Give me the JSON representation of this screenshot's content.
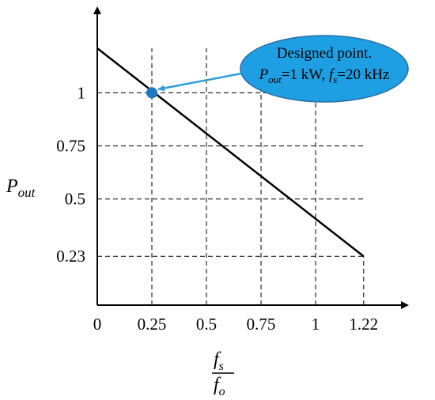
{
  "chart_data": {
    "type": "line",
    "series": [
      {
        "x": [
          0,
          1.22
        ],
        "values": [
          1.21,
          0.23
        ],
        "color": "#000000"
      }
    ],
    "marker": {
      "x": 0.25,
      "y": 1,
      "color": "#1f77c0"
    },
    "annotation": {
      "line1": "Designed point.",
      "p": "P",
      "p_sub": "out",
      "p_rest": "=1 kW, ",
      "f": "f",
      "f_sub": "s",
      "f_rest": "=20 kHz",
      "color": "#1e9fe3"
    },
    "y_label": {
      "main": "P",
      "sub": "out"
    },
    "x_label": {
      "num": "f",
      "num_sub": "s",
      "den": "f",
      "den_sub": "o"
    },
    "xlim": [
      0,
      1.42
    ],
    "ylim": [
      0,
      1.4
    ],
    "xticks": [
      0,
      0.25,
      0.5,
      0.75,
      1,
      1.22
    ],
    "yticks": [
      0.23,
      0.5,
      0.75,
      1
    ],
    "grid": true
  }
}
